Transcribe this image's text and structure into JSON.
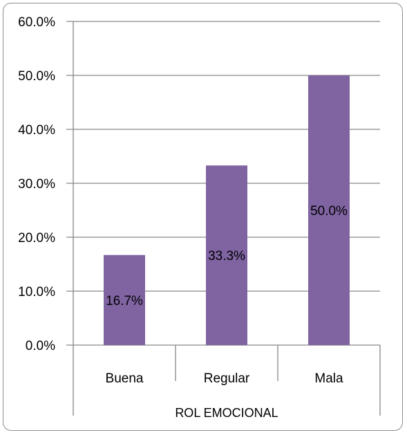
{
  "chart_data": {
    "type": "bar",
    "categories": [
      "Buena",
      "Regular",
      "Mala"
    ],
    "values": [
      16.7,
      33.3,
      50.0
    ],
    "data_labels": [
      "16.7%",
      "33.3%",
      "50.0%"
    ],
    "title": "",
    "xlabel": "ROL EMOCIONAL",
    "ylabel": "",
    "ylim": [
      0,
      60
    ],
    "yticks": [
      "0.0%",
      "10.0%",
      "20.0%",
      "30.0%",
      "40.0%",
      "50.0%",
      "60.0%"
    ],
    "grid": true,
    "legend": "none",
    "colors": {
      "bar": "#8064a2",
      "grid": "#868686",
      "axis": "#868686"
    }
  }
}
